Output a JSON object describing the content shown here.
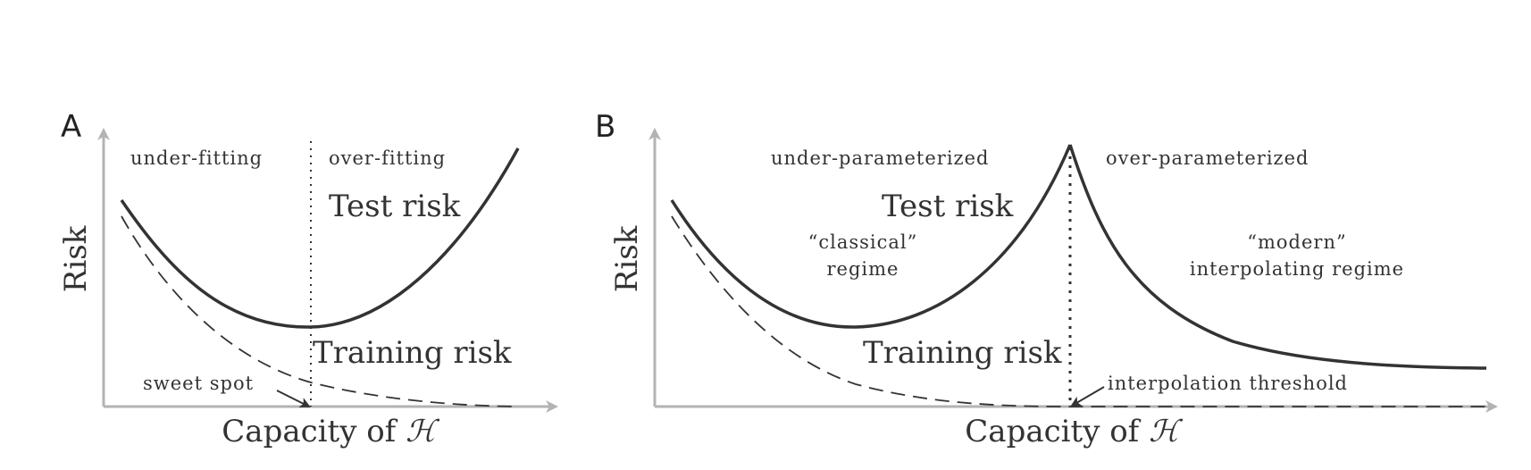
{
  "figure": {
    "panel_a": {
      "letter": "A",
      "x_label_prefix": "Capacity of ",
      "x_label_symbol": "ℋ",
      "y_label": "Risk",
      "left_region": "under-fitting",
      "right_region": "over-fitting",
      "test_label": "Test risk",
      "train_label": "Training risk",
      "callout": "sweet spot"
    },
    "panel_b": {
      "letter": "B",
      "x_label_prefix": "Capacity of ",
      "x_label_symbol": "ℋ",
      "y_label": "Risk",
      "left_region": "under-parameterized",
      "right_region": "over-parameterized",
      "test_label": "Test risk",
      "train_label": "Training risk",
      "left_regime_line1": "“classical”",
      "left_regime_line2": "regime",
      "right_regime_line1": "“modern”",
      "right_regime_line2": "interpolating regime",
      "callout": "interpolation threshold"
    },
    "colors": {
      "axis": "#b3b3b3",
      "curve": "#333333",
      "text": "#333333"
    }
  }
}
